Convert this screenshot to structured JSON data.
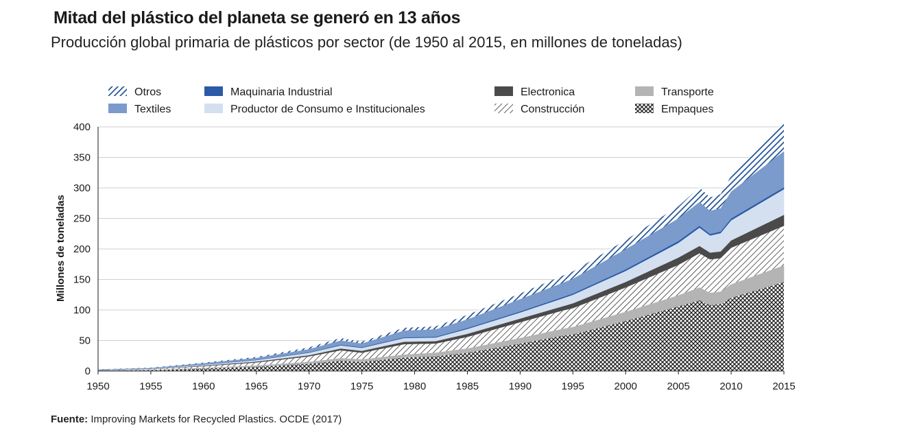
{
  "title": "Mitad del plástico del planeta se generó en 13 años",
  "subtitle": "Producción global primaria de plásticos por sector (de 1950 al 2015, en millones de toneladas)",
  "source": {
    "label": "Fuente:",
    "text": " Improving Markets for Recycled Plastics. OCDE (2017)"
  },
  "chart_data": {
    "type": "area",
    "stacked": true,
    "ylabel": "Millones de toneladas",
    "xlabel": "",
    "xlim": [
      1950,
      2015
    ],
    "ylim": [
      0,
      400
    ],
    "x_ticks": [
      1950,
      1955,
      1960,
      1965,
      1970,
      1975,
      1980,
      1985,
      1990,
      1995,
      2000,
      2005,
      2010,
      2015
    ],
    "y_ticks": [
      0,
      50,
      100,
      150,
      200,
      250,
      300,
      350,
      400
    ],
    "grid": "horizontal",
    "legend_position": "top",
    "x": [
      1950,
      1955,
      1960,
      1965,
      1970,
      1973,
      1975,
      1979,
      1982,
      1985,
      1990,
      1994,
      1995,
      2000,
      2005,
      2007,
      2008,
      2009,
      2010,
      2015
    ],
    "series": [
      {
        "name": "Empaques",
        "pattern": "crosshatch",
        "color": "#1a1a1a",
        "values": [
          0.7,
          1.5,
          4,
          7,
          12,
          17,
          15,
          22,
          24,
          30,
          45,
          58,
          60,
          82,
          106,
          116,
          108,
          110,
          120,
          146
        ]
      },
      {
        "name": "Transporte",
        "pattern": "solid",
        "color": "#b4b4b4",
        "values": [
          0.2,
          0.4,
          1,
          2,
          3,
          4,
          4,
          5,
          6,
          7,
          9,
          11,
          12,
          15,
          18,
          21,
          20,
          20,
          22,
          27
        ]
      },
      {
        "name": "Construcción",
        "pattern": "diagonal",
        "color": "#1a1a1a",
        "values": [
          0.6,
          1.2,
          3,
          5,
          9,
          13,
          11,
          17,
          15,
          19,
          26,
          30,
          31,
          40,
          50,
          56,
          55,
          55,
          60,
          65
        ]
      },
      {
        "name": "Electronica",
        "pattern": "solid",
        "color": "#4a4a4a",
        "values": [
          0.1,
          0.3,
          1,
          1.5,
          2,
          3,
          3,
          4,
          4,
          5,
          6,
          7,
          8,
          9,
          12,
          12,
          11,
          11,
          12,
          18
        ]
      },
      {
        "name": "Productor de Consumo e Institucionales",
        "pattern": "solid",
        "color": "#d4e0ef",
        "values": [
          0.3,
          0.6,
          1.5,
          2.5,
          4,
          5,
          5,
          6,
          6,
          8,
          10,
          13,
          14,
          18,
          24,
          30,
          28,
          30,
          33,
          42
        ]
      },
      {
        "name": "Maquinaria Industrial",
        "pattern": "solid",
        "color": "#2a5aa8",
        "values": [
          0.1,
          0.1,
          0.3,
          0.5,
          0.8,
          1,
          1,
          1.2,
          1.2,
          1.5,
          1.6,
          2,
          2,
          2.5,
          3,
          3,
          2.5,
          2.5,
          3,
          3
        ]
      },
      {
        "name": "Textiles",
        "pattern": "solid",
        "color": "#7a9bcb",
        "values": [
          0.4,
          0.8,
          2,
          3,
          5,
          7,
          6,
          11,
          12,
          14,
          20,
          23,
          24,
          33,
          37,
          39,
          38,
          38,
          44,
          59
        ]
      },
      {
        "name": "Otros",
        "pattern": "stripe",
        "color": "#1f4f8f",
        "values": [
          0.3,
          0.6,
          1,
          1.5,
          3,
          4,
          3,
          4.6,
          5,
          7.5,
          9.4,
          12,
          12,
          15,
          20,
          24,
          22,
          23,
          26,
          47
        ]
      }
    ],
    "legend_order": [
      "Otros",
      "Maquinaria Industrial",
      "Electronica",
      "Transporte",
      "Textiles",
      "Productor de Consumo e Institucionales",
      "Construcción",
      "Empaques"
    ]
  }
}
